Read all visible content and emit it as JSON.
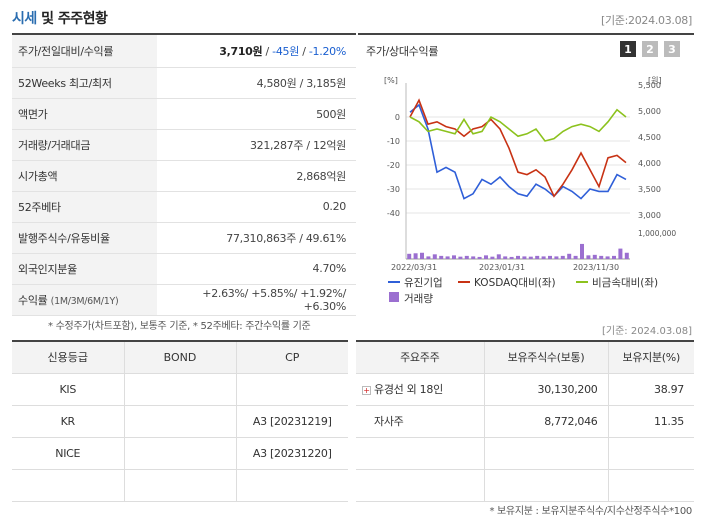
{
  "header": {
    "title_main": "시세",
    "title_rest": " 및 주주현황",
    "date": "[기준:2024.03.08]"
  },
  "stock": {
    "rows": [
      {
        "label": "주가/전일대비/수익률"
      },
      {
        "label": "52Weeks 최고/최저",
        "value": "4,580원 / 3,185원"
      },
      {
        "label": "액면가",
        "value": "500원"
      },
      {
        "label": "거래량/거래대금",
        "value": "321,287주 / 12억원"
      },
      {
        "label": "시가총액",
        "value": "2,868억원"
      },
      {
        "label": "52주베타",
        "value": "0.20"
      },
      {
        "label": "발행주식수/유동비율",
        "value": "77,310,863주 / 49.61%"
      },
      {
        "label": "외국인지분율",
        "value": "4.70%"
      },
      {
        "label": "수익률",
        "sublabel": "(1M/3M/6M/1Y)"
      }
    ],
    "price": "3,710원",
    "change": "-45원",
    "change_rate": "-1.20%",
    "returns": "+2.63%/ +5.85%/ +1.92%/ +6.30%",
    "sep": " / "
  },
  "note1": "* 수정주가(차트포함), 보통주 기준, * 52주베타: 주간수익률 기준",
  "chart": {
    "title": "주가/상대수익률",
    "buttons": [
      "1",
      "2",
      "3"
    ],
    "left_unit": "[%]",
    "right_unit": "[원]",
    "legend": [
      {
        "name": "유진기업",
        "color": "#2f5fd8"
      },
      {
        "name": "KOSDAQ대비(좌)",
        "color": "#c83214"
      },
      {
        "name": "비금속대비(좌)",
        "color": "#8cc21e"
      },
      {
        "name": "거래량",
        "color": "#9b6fd0"
      }
    ]
  },
  "chart_data": {
    "type": "line",
    "title": "주가/상대수익률",
    "x_ticks": [
      "2022/03/31",
      "2023/01/31",
      "2023/11/30"
    ],
    "y_left_ticks": [
      "0",
      "-10",
      "-20",
      "-30",
      "-40"
    ],
    "y_left_range": [
      -40,
      10
    ],
    "y_right_ticks": [
      "5,500",
      "5,000",
      "4,500",
      "4,000",
      "3,500",
      "3,000"
    ],
    "y_right_range": [
      3000,
      5500
    ],
    "volume_tick": "1,000,000",
    "series": [
      {
        "name": "유진기업",
        "values": [
          2,
          5,
          -5,
          -23,
          -21,
          -23,
          -34,
          -32,
          -26,
          -28,
          -25,
          -29,
          -32,
          -33,
          -28,
          -30,
          -33,
          -29,
          -31,
          -34,
          -30,
          -31,
          -31,
          -24,
          -26
        ]
      },
      {
        "name": "KOSDAQ대비(좌)",
        "values": [
          0,
          7,
          -3,
          -2,
          -4,
          -5,
          -8,
          -5,
          -4,
          -1,
          -5,
          -13,
          -23,
          -24,
          -22,
          -25,
          -33,
          -28,
          -22,
          -15,
          -22,
          -29,
          -17,
          -16,
          -19
        ]
      },
      {
        "name": "비금속대비(좌)",
        "values": [
          0,
          -2,
          -6,
          -5,
          -6,
          -7,
          -1,
          -7,
          -6,
          0,
          -2,
          -5,
          -8,
          -7,
          -5,
          -10,
          -9,
          -6,
          -4,
          -3,
          -4,
          -6,
          -2,
          3,
          0
        ]
      },
      {
        "name": "거래량",
        "values": [
          0.2,
          0.22,
          0.24,
          0.1,
          0.18,
          0.12,
          0.1,
          0.14,
          0.09,
          0.12,
          0.1,
          0.08,
          0.14,
          0.09,
          0.18,
          0.1,
          0.08,
          0.12,
          0.1,
          0.09,
          0.12,
          0.1,
          0.12,
          0.1,
          0.12,
          0.2,
          0.12,
          0.58,
          0.14,
          0.16,
          0.12,
          0.1,
          0.12,
          0.4,
          0.24
        ]
      }
    ]
  },
  "date_mid": "[기준: 2024.03.08]",
  "credit": {
    "headers": [
      "신용등급",
      "BOND",
      "CP"
    ],
    "rows": [
      [
        "KIS",
        "",
        ""
      ],
      [
        "KR",
        "",
        "A3 [20231219]"
      ],
      [
        "NICE",
        "",
        "A3 [20231220]"
      ],
      [
        "",
        "",
        ""
      ]
    ]
  },
  "holders": {
    "headers": [
      "주요주주",
      "보유주식수(보통)",
      "보유지분(%)"
    ],
    "rows": [
      [
        "유경선 외 18인",
        "30,130,200",
        "38.97"
      ],
      [
        "자사주",
        "8,772,046",
        "11.35"
      ],
      [
        "",
        "",
        ""
      ],
      [
        "",
        "",
        ""
      ]
    ]
  },
  "note2": "* 보유지분 : 보유지분주식수/지수산정주식수*100"
}
